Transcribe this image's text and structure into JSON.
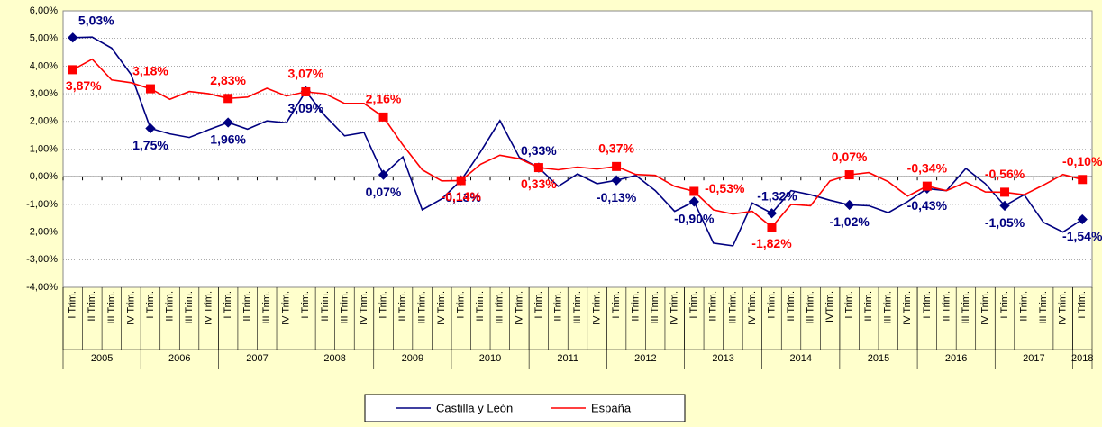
{
  "chart_data": {
    "type": "line",
    "categories": [
      "I Trim.",
      "II Trim.",
      "III Trim.",
      "IV Trim.",
      "I Trim.",
      "II Trim.",
      "III Trim.",
      "IV Trim.",
      "I Trim.",
      "II Trim.",
      "III Trim.",
      "IV Trim.",
      "I Trim.",
      "II Trim.",
      "III Trim.",
      "IV Trim.",
      "I Trim.",
      "II Trim.",
      "III Trim.",
      "IV Trim.",
      "I Trim.",
      "II Trim.",
      "III Trim.",
      "IV Trim.",
      "I Trim.",
      "II Trim.",
      "III Trim.",
      "IV Trim.",
      "I Trim.",
      "II Trim.",
      "III Trim.",
      "IV Trim.",
      "I Trim.",
      "II Trim.",
      "III Trim.",
      "IV Trim.",
      "I Trim.",
      "II Trim.",
      "III Trim.",
      "IVTrim.",
      "I Trim.",
      "II Trim.",
      "III Trim.",
      "IV Trim.",
      "I Trim.",
      "II Trim.",
      "III Trim.",
      "IV Trim.",
      "I Trim.",
      "II Trim.",
      "III Trim.",
      "IV Trim.",
      "I Trim."
    ],
    "groups": [
      {
        "label": "2005",
        "size": 4
      },
      {
        "label": "2006",
        "size": 4
      },
      {
        "label": "2007",
        "size": 4
      },
      {
        "label": "2008",
        "size": 4
      },
      {
        "label": "2009",
        "size": 4
      },
      {
        "label": "2010",
        "size": 4
      },
      {
        "label": "2011",
        "size": 4
      },
      {
        "label": "2012",
        "size": 4
      },
      {
        "label": "2013",
        "size": 4
      },
      {
        "label": "2014",
        "size": 4
      },
      {
        "label": "2015",
        "size": 4
      },
      {
        "label": "2016",
        "size": 4
      },
      {
        "label": "2017",
        "size": 4
      },
      {
        "label": "2018",
        "size": 1
      }
    ],
    "series": [
      {
        "name": "Castilla y León",
        "color": "#000080",
        "values": [
          5.03,
          5.05,
          4.65,
          3.7,
          1.75,
          1.55,
          1.42,
          1.7,
          1.96,
          1.72,
          2.02,
          1.95,
          3.09,
          2.2,
          1.48,
          1.6,
          0.07,
          0.72,
          -1.2,
          -0.8,
          -0.13,
          0.9,
          2.03,
          0.7,
          0.33,
          -0.35,
          0.1,
          -0.25,
          -0.13,
          0.05,
          -0.5,
          -1.25,
          -0.9,
          -2.4,
          -2.5,
          -0.95,
          -1.32,
          -0.5,
          -0.65,
          -0.85,
          -1.02,
          -1.05,
          -1.3,
          -0.9,
          -0.43,
          -0.5,
          0.3,
          -0.25,
          -1.05,
          -0.65,
          -1.65,
          -2.0,
          -1.54
        ],
        "value_labels": [
          "5,03%",
          null,
          null,
          null,
          "1,75%",
          null,
          null,
          null,
          "1,96%",
          null,
          null,
          null,
          "3,09%",
          null,
          null,
          null,
          "0,07%",
          null,
          null,
          null,
          "-0,13%",
          null,
          null,
          null,
          "0,33%",
          null,
          null,
          null,
          "-0,13%",
          null,
          null,
          null,
          "-0,90%",
          null,
          null,
          null,
          "-1,32%",
          null,
          null,
          null,
          "-1,02%",
          null,
          null,
          null,
          "-0,43%",
          null,
          null,
          null,
          "-1,05%",
          null,
          null,
          null,
          "-1,54%"
        ]
      },
      {
        "name": "España",
        "color": "#ff0000",
        "values": [
          3.87,
          4.25,
          3.5,
          3.4,
          3.18,
          2.8,
          3.08,
          3.0,
          2.83,
          2.88,
          3.2,
          2.92,
          3.07,
          3.0,
          2.65,
          2.65,
          2.16,
          1.15,
          0.25,
          -0.15,
          -0.14,
          0.45,
          0.78,
          0.65,
          0.33,
          0.25,
          0.35,
          0.28,
          0.37,
          0.08,
          0.05,
          -0.35,
          -0.53,
          -1.2,
          -1.35,
          -1.25,
          -1.82,
          -1.0,
          -1.05,
          -0.15,
          0.07,
          0.15,
          -0.18,
          -0.7,
          -0.34,
          -0.5,
          -0.2,
          -0.55,
          -0.56,
          -0.65,
          -0.3,
          0.08,
          -0.1
        ],
        "value_labels": [
          "3,87%",
          null,
          null,
          null,
          "3,18%",
          null,
          null,
          null,
          "2,83%",
          null,
          null,
          null,
          "3,07%",
          null,
          null,
          null,
          "2,16%",
          null,
          null,
          null,
          "-0,14%",
          null,
          null,
          null,
          "0,33%",
          null,
          null,
          null,
          "0,37%",
          null,
          null,
          null,
          "-0,53%",
          null,
          null,
          null,
          "-1,82%",
          null,
          null,
          null,
          "0,07%",
          null,
          null,
          null,
          "-0,34%",
          null,
          null,
          null,
          "-0,56%",
          null,
          null,
          null,
          "-0,10%"
        ]
      }
    ],
    "ylim": [
      -4,
      6
    ],
    "yticks": [
      {
        "value": -4,
        "label": "-4,00%"
      },
      {
        "value": -3,
        "label": "-3,00%"
      },
      {
        "value": -2,
        "label": "-2,00%"
      },
      {
        "value": -1,
        "label": "-1,00%"
      },
      {
        "value": 0,
        "label": "0,00%"
      },
      {
        "value": 1,
        "label": "1,00%"
      },
      {
        "value": 2,
        "label": "2,00%"
      },
      {
        "value": 3,
        "label": "3,00%"
      },
      {
        "value": 4,
        "label": "4,00%"
      },
      {
        "value": 5,
        "label": "5,00%"
      },
      {
        "value": 6,
        "label": "6,00%"
      }
    ],
    "grid": true,
    "legend": "bottom"
  }
}
